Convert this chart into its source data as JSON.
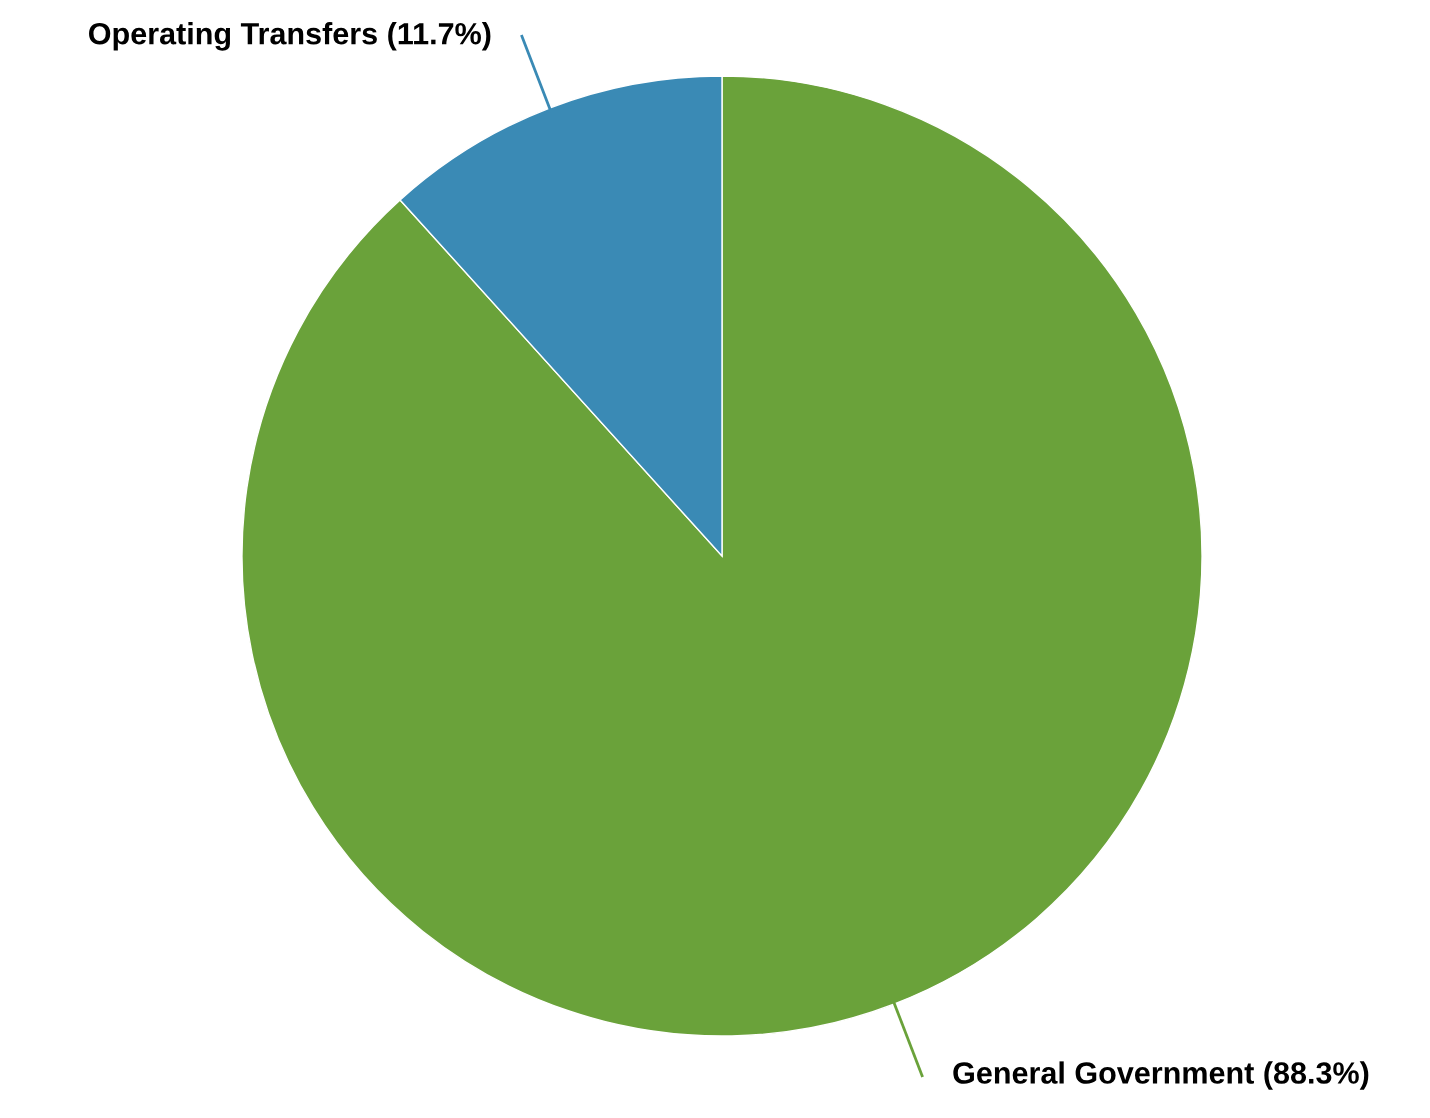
{
  "chart_data": {
    "type": "pie",
    "categories": [
      "General Government (88.3%)",
      "Operating Transfers (11.7%)"
    ],
    "values": [
      88.3,
      11.7
    ],
    "colors": [
      "#6aa23a",
      "#3a8ab5"
    ]
  }
}
